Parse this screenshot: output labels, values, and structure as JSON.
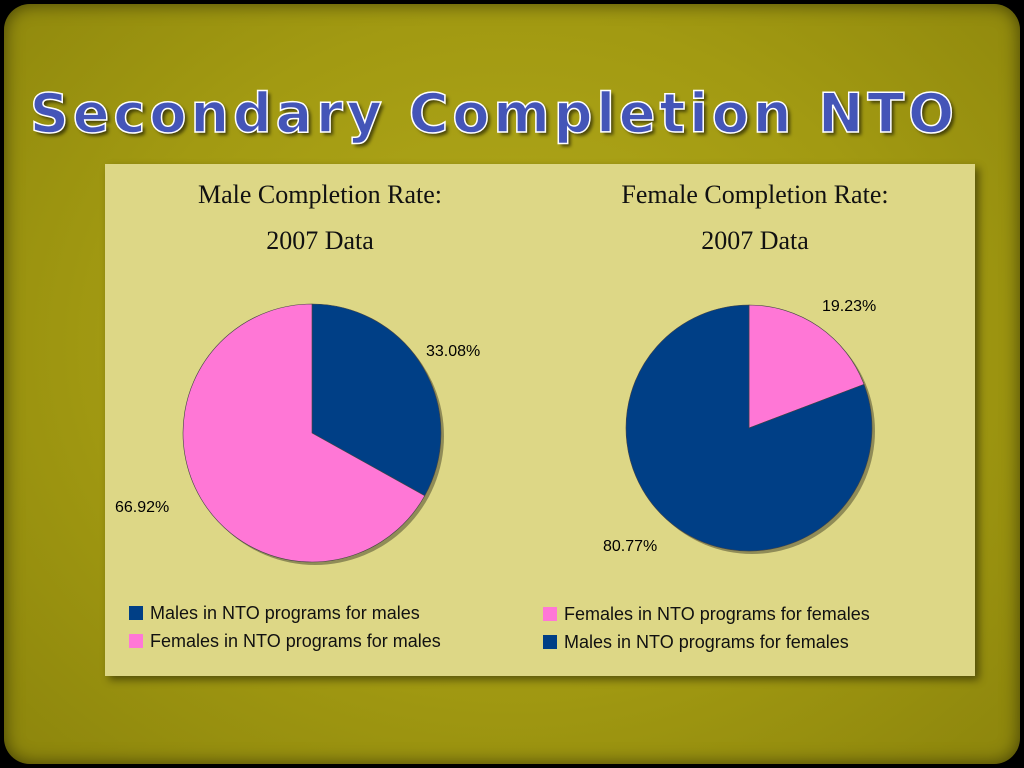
{
  "slide": {
    "title": "Secondary Completion NTO"
  },
  "colors": {
    "navy": "#003f86",
    "pink": "#ff77d6"
  },
  "chart_data": [
    {
      "type": "pie",
      "title_line1": "Male Completion Rate:",
      "title_line2": "2007 Data",
      "slices": [
        {
          "label": "Males in NTO programs for males",
          "value": 33.08,
          "value_label": "33.08%",
          "color": "#003f86"
        },
        {
          "label": "Females in NTO programs for males",
          "value": 66.92,
          "value_label": "66.92%",
          "color": "#ff77d6"
        }
      ],
      "legend_position": "bottom"
    },
    {
      "type": "pie",
      "title_line1": "Female Completion Rate:",
      "title_line2": "2007 Data",
      "slices": [
        {
          "label": "Females in NTO programs for females",
          "value": 19.23,
          "value_label": "19.23%",
          "color": "#ff77d6"
        },
        {
          "label": "Males in NTO programs for females",
          "value": 80.77,
          "value_label": "80.77%",
          "color": "#003f86"
        }
      ],
      "legend_position": "bottom"
    }
  ]
}
